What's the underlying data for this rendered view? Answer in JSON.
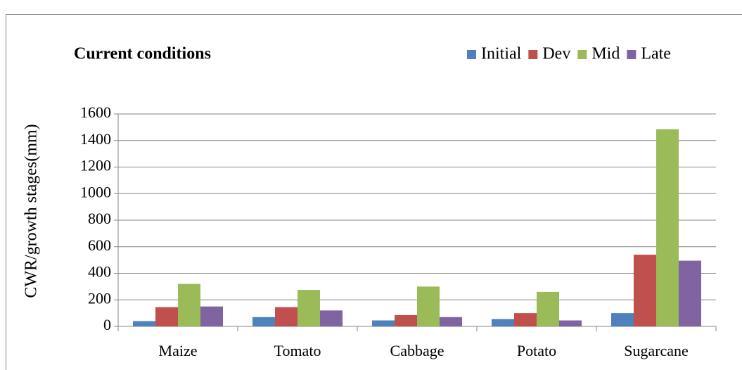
{
  "chart_data": {
    "type": "bar",
    "title": "Current conditions",
    "y_label": "CWR/growth stages(mm)",
    "categories": [
      "Maize",
      "Tomato",
      "Cabbage",
      "Potato",
      "Sugarcane"
    ],
    "series": [
      {
        "name": "Initial",
        "color": "#4f81bd",
        "values": [
          40,
          70,
          45,
          55,
          100
        ]
      },
      {
        "name": "Dev",
        "color": "#c0504d",
        "values": [
          145,
          145,
          85,
          100,
          540
        ]
      },
      {
        "name": "Mid",
        "color": "#9bbb59",
        "values": [
          320,
          275,
          300,
          260,
          1485
        ]
      },
      {
        "name": "Late",
        "color": "#8064a2",
        "values": [
          150,
          120,
          70,
          45,
          495
        ]
      }
    ],
    "ylim": [
      0,
      1600
    ],
    "yticks": [
      0,
      200,
      400,
      600,
      800,
      1000,
      1200,
      1400,
      1600
    ],
    "grid": true,
    "legend": "top-right"
  }
}
